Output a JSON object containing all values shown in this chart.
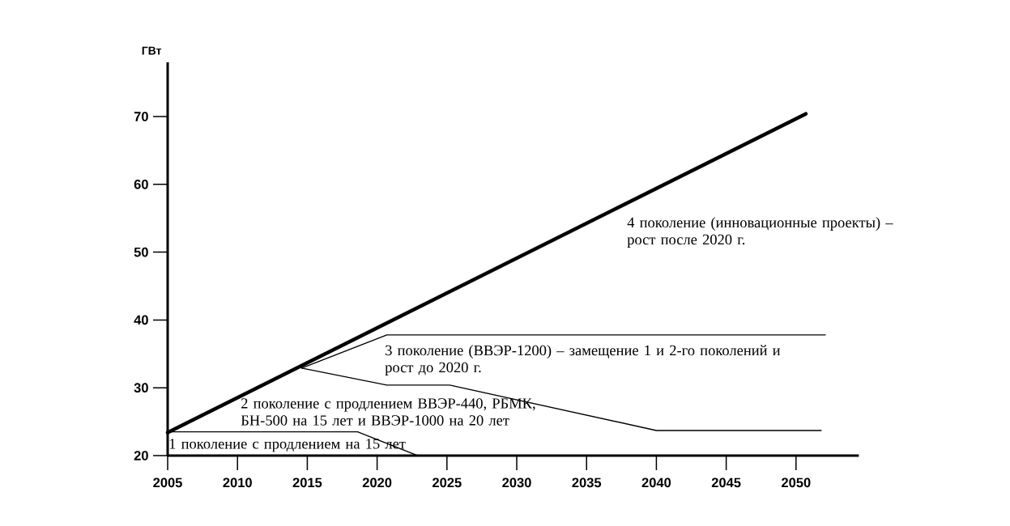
{
  "chart_data": {
    "type": "line",
    "ylabel": "ГВт",
    "xlim": [
      2005,
      2054.5
    ],
    "ylim": [
      20,
      78
    ],
    "xticks": [
      2005,
      2010,
      2015,
      2020,
      2025,
      2030,
      2035,
      2040,
      2045,
      2050
    ],
    "yticks": [
      20,
      30,
      40,
      50,
      60,
      70
    ],
    "grid": false,
    "marker": "none",
    "line_style": "solid",
    "series": [
      {
        "color": "#000000",
        "x": [
          2005,
          2050.7
        ],
        "values": [
          23.4,
          70.4
        ]
      },
      {
        "color": "#000000",
        "x": [
          2014.6,
          2020.7,
          2052.1
        ],
        "values": [
          32.9,
          37.8,
          37.8
        ]
      },
      {
        "color": "#000000",
        "x": [
          2014.6,
          2020.7,
          2025.2,
          2040,
          2051.8
        ],
        "values": [
          32.9,
          30.4,
          30.4,
          23.7,
          23.7
        ]
      },
      {
        "color": "#000000",
        "x": [
          2005,
          2018.6,
          2022.9
        ],
        "values": [
          23.5,
          23.5,
          20
        ]
      }
    ],
    "annotations": [
      "4 поколение (инновационные проекты) – рост после 2020 г.",
      "3 поколение (ВВЭР-1200) – замещение 1 и 2-го поколений и рост до 2020 г.",
      "2 поколение с продлением ВВЭР-440, РБМК, БН-500 на 15 лет и ВВЭР-1000 на 20 лет",
      "1 поколение с продлением на 15 лет"
    ]
  }
}
